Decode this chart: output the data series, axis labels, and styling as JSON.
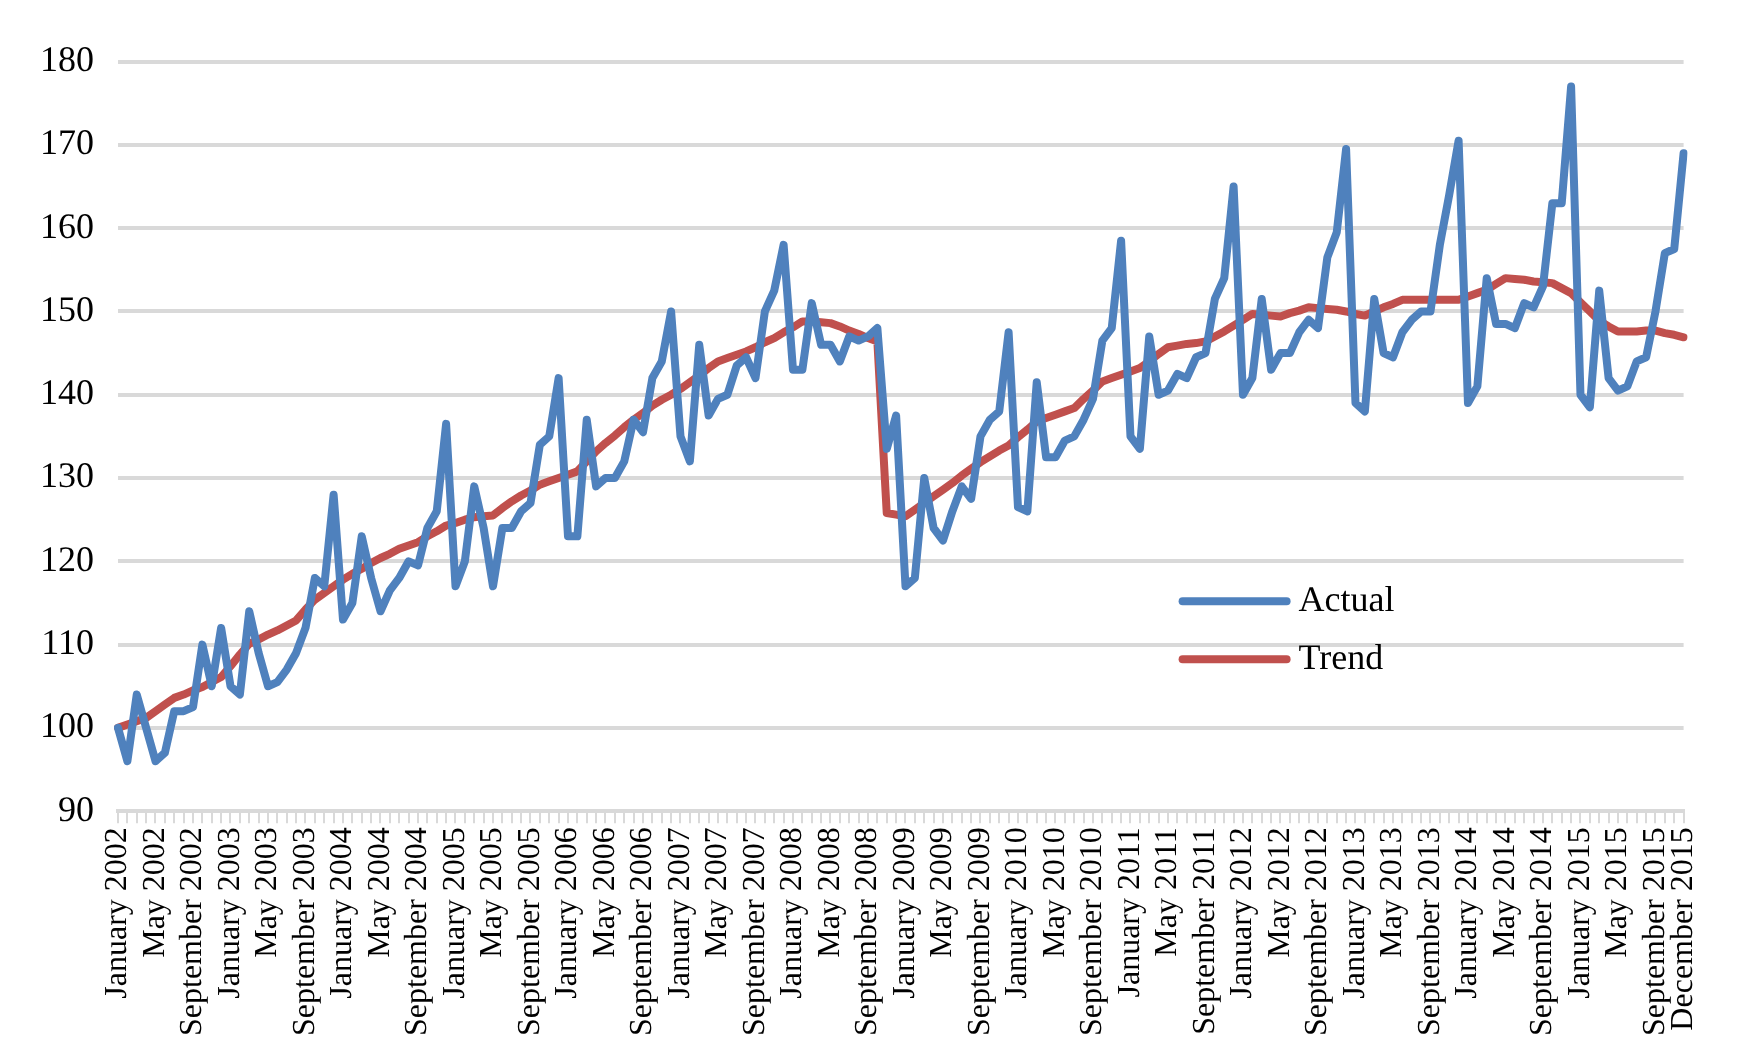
{
  "chart_data": {
    "type": "line",
    "categories": [
      "January 2002",
      null,
      null,
      null,
      "May 2002",
      null,
      null,
      null,
      "September 2002",
      null,
      null,
      null,
      "January 2003",
      null,
      null,
      null,
      "May 2003",
      null,
      null,
      null,
      "September 2003",
      null,
      null,
      null,
      "January 2004",
      null,
      null,
      null,
      "May 2004",
      null,
      null,
      null,
      "September 2004",
      null,
      null,
      null,
      "January 2005",
      null,
      null,
      null,
      "May 2005",
      null,
      null,
      null,
      "September 2005",
      null,
      null,
      null,
      "January 2006",
      null,
      null,
      null,
      "May 2006",
      null,
      null,
      null,
      "September 2006",
      null,
      null,
      null,
      "January 2007",
      null,
      null,
      null,
      "May 2007",
      null,
      null,
      null,
      "September 2007",
      null,
      null,
      null,
      "January 2008",
      null,
      null,
      null,
      "May 2008",
      null,
      null,
      null,
      "September 2008",
      null,
      null,
      null,
      "January 2009",
      null,
      null,
      null,
      "May 2009",
      null,
      null,
      null,
      "September 2009",
      null,
      null,
      null,
      "January 2010",
      null,
      null,
      null,
      "May 2010",
      null,
      null,
      null,
      "September 2010",
      null,
      null,
      null,
      "January 2011",
      null,
      null,
      null,
      "May 2011",
      null,
      null,
      null,
      "September 2011",
      null,
      null,
      null,
      "January 2012",
      null,
      null,
      null,
      "May 2012",
      null,
      null,
      null,
      "September 2012",
      null,
      null,
      null,
      "January 2013",
      null,
      null,
      null,
      "May 2013",
      null,
      null,
      null,
      "September 2013",
      null,
      null,
      null,
      "January 2014",
      null,
      null,
      null,
      "May 2014",
      null,
      null,
      null,
      "September 2014",
      null,
      null,
      null,
      "January 2015",
      null,
      null,
      null,
      "May 2015",
      null,
      null,
      null,
      "September 2015",
      null,
      null,
      "December 2015"
    ],
    "series": [
      {
        "name": "Actual",
        "color": "#4f81bd",
        "values": [
          100,
          96,
          104,
          100,
          96,
          97,
          102,
          102,
          102.5,
          110,
          105,
          112,
          105,
          104,
          114,
          109,
          105,
          105.5,
          107,
          109,
          112,
          118,
          117,
          128,
          113,
          115,
          123,
          118,
          114,
          116.5,
          118,
          120,
          119.5,
          124,
          126,
          136.5,
          117,
          120,
          129,
          124,
          117,
          124,
          124,
          126,
          127,
          134,
          135,
          142,
          123,
          123,
          137,
          129,
          130,
          130,
          132,
          137,
          135.5,
          142,
          144,
          150,
          135,
          132,
          146,
          137.5,
          139.5,
          140,
          143.5,
          144.5,
          142,
          150,
          152.5,
          158,
          143,
          143,
          151,
          146,
          146,
          144,
          147,
          146.5,
          147,
          148,
          133.5,
          137.5,
          117,
          118,
          130,
          124,
          122.5,
          126,
          129,
          127.5,
          135,
          137,
          138,
          147.5,
          126.5,
          126,
          141.5,
          132.5,
          132.5,
          134.5,
          135,
          137,
          139.5,
          146.5,
          148,
          158.5,
          135,
          133.5,
          147,
          140,
          140.5,
          142.5,
          142,
          144.5,
          145,
          151.5,
          154,
          165,
          140,
          142,
          151.5,
          143,
          145,
          145,
          147.5,
          149,
          148,
          156.5,
          159.5,
          169.5,
          139,
          138,
          151.5,
          145,
          144.5,
          147.5,
          149,
          150,
          150,
          158,
          164,
          170.5,
          139,
          141,
          154,
          148.5,
          148.5,
          148,
          151,
          150.5,
          153,
          163,
          163,
          177,
          140,
          138.5,
          152.5,
          142,
          140.5,
          141,
          144,
          144.5,
          150,
          157,
          157.5,
          169
        ]
      },
      {
        "name": "Trend",
        "color": "#c0504d",
        "values": [
          100,
          100.4,
          100.8,
          101.2,
          102,
          102.8,
          103.6,
          104,
          104.5,
          104.9,
          105.5,
          106.1,
          107.4,
          108.8,
          110.1,
          110.6,
          111.2,
          111.7,
          112.3,
          112.9,
          114.2,
          115.4,
          116.2,
          117,
          117.8,
          118.5,
          119.1,
          119.8,
          120.4,
          120.9,
          121.5,
          121.9,
          122.3,
          123,
          123.6,
          124.3,
          124.6,
          125,
          125.3,
          125.4,
          125.5,
          126.4,
          127.2,
          127.9,
          128.5,
          129.2,
          129.6,
          130,
          130.4,
          130.8,
          132,
          133.2,
          134.2,
          135.1,
          136.1,
          137,
          137.8,
          138.7,
          139.4,
          140,
          140.7,
          141.5,
          142.3,
          143.2,
          144,
          144.4,
          144.8,
          145.2,
          145.7,
          146.3,
          146.8,
          147.5,
          148.1,
          148.8,
          148.8,
          148.7,
          148.6,
          148.2,
          147.7,
          147.3,
          146.8,
          146.4,
          125.8,
          125.6,
          125.4,
          126.2,
          127,
          127.8,
          128.6,
          129.4,
          130.3,
          131.1,
          131.9,
          132.6,
          133.3,
          133.9,
          134.9,
          135.8,
          136.8,
          137.2,
          137.6,
          138,
          138.4,
          139.5,
          140.5,
          141.6,
          142,
          142.4,
          142.8,
          143.2,
          144,
          144.9,
          145.7,
          145.9,
          146.1,
          146.2,
          146.4,
          147,
          147.6,
          148.3,
          149,
          149.7,
          149.6,
          149.5,
          149.4,
          149.8,
          150.1,
          150.5,
          150.4,
          150.3,
          150.2,
          150,
          149.7,
          149.5,
          150,
          150.5,
          150.9,
          151.4,
          151.4,
          151.4,
          151.4,
          151.4,
          151.4,
          151.4,
          151.8,
          152.2,
          152.6,
          153.3,
          154,
          153.9,
          153.8,
          153.6,
          153.5,
          153.4,
          152.8,
          152.2,
          151.1,
          150,
          148.9,
          148.2,
          147.6,
          147.6,
          147.6,
          147.7,
          147.7,
          147.4,
          147.2,
          146.9
        ]
      }
    ],
    "ylim": [
      90,
      180
    ],
    "yticks": [
      90,
      100,
      110,
      120,
      130,
      140,
      150,
      160,
      170,
      180
    ],
    "grid": "y",
    "legend": "bottom right",
    "marker": "none",
    "line_style": "solid"
  }
}
